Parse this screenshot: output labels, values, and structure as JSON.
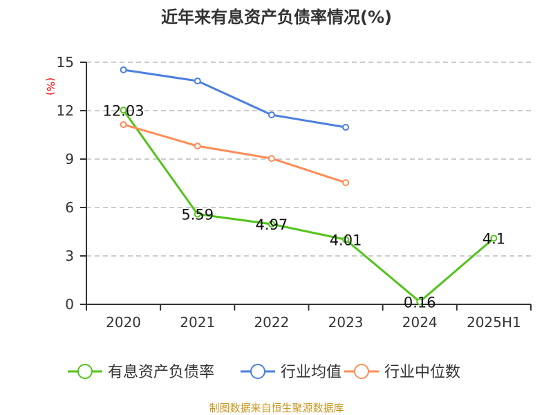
{
  "chart_data": {
    "type": "line",
    "title": "近年来有息资产负债率情况(%)",
    "ylabel": "(%)",
    "xlabel": "",
    "categories": [
      "2020",
      "2021",
      "2022",
      "2023",
      "2024",
      "2025H1"
    ],
    "ylim": [
      0,
      15
    ],
    "yticks": [
      0,
      3,
      6,
      9,
      12,
      15
    ],
    "grid": true,
    "legend_position": "bottom",
    "series": [
      {
        "name": "有息资产负债率",
        "color": "#52c41a",
        "values": [
          12.03,
          5.59,
          4.97,
          4.01,
          0.16,
          4.1
        ],
        "labels": [
          "12.03",
          "5.59",
          "4.97",
          "4.01",
          "0.16",
          "4.1"
        ]
      },
      {
        "name": "行业均值",
        "color": "#4a7fe0",
        "values": [
          14.53,
          13.84,
          11.74,
          10.97,
          null,
          null
        ]
      },
      {
        "name": "行业中位数",
        "color": "#ff8c55",
        "values": [
          11.14,
          9.81,
          9.04,
          7.54,
          null,
          null
        ]
      }
    ],
    "source": "制图数据来自恒生聚源数据库",
    "ylabel_color": "#ff0000",
    "source_color": "#c8961e"
  }
}
